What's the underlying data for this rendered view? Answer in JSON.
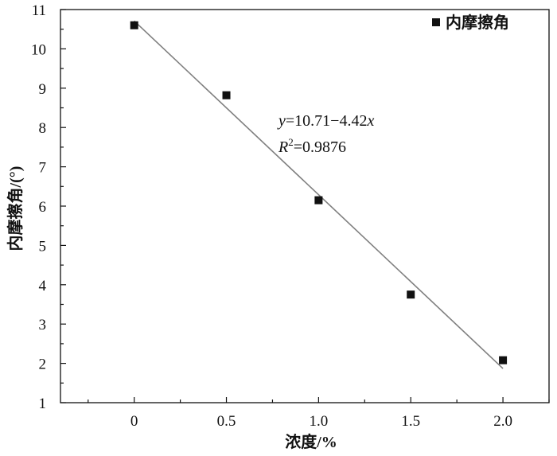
{
  "chart_data": {
    "type": "scatter",
    "xlabel": "浓度/%",
    "ylabel": "内摩擦角/(°)",
    "xlim": [
      -0.4,
      2.25
    ],
    "ylim": [
      1,
      11
    ],
    "x_ticks": [
      "0",
      "0.5",
      "1.0",
      "1.5",
      "2.0"
    ],
    "x_tick_values": [
      0,
      0.5,
      1.0,
      1.5,
      2.0
    ],
    "y_ticks": [
      "1",
      "2",
      "3",
      "4",
      "5",
      "6",
      "7",
      "8",
      "9",
      "10",
      "11"
    ],
    "y_tick_values": [
      1,
      2,
      3,
      4,
      5,
      6,
      7,
      8,
      9,
      10,
      11
    ],
    "grid": false,
    "legend_position": "top-right",
    "series": [
      {
        "name": "内摩擦角",
        "marker": "square",
        "color": "#111111",
        "x": [
          0,
          0.5,
          1.0,
          1.5,
          2.0
        ],
        "y": [
          10.6,
          8.82,
          6.15,
          3.75,
          2.08
        ]
      }
    ],
    "fit": {
      "intercept": 10.71,
      "slope": -4.42,
      "x_range": [
        0,
        2.0
      ],
      "color": "#7f7f7f",
      "equation_y": "y",
      "equation_eq": "=10.71−4.42",
      "equation_x": "x",
      "r2_r": "R",
      "r2_sup": "2",
      "r2_val": "=0.9876"
    }
  }
}
